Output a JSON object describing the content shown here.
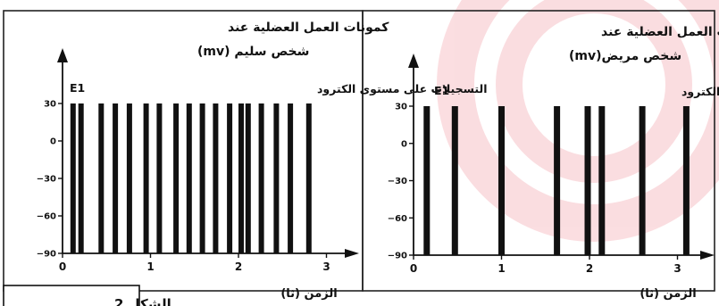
{
  "figure": {
    "caption": "الشكل 2",
    "colors": {
      "ink": "#111111",
      "watermark": "#e0001b"
    }
  },
  "chart_data": [
    {
      "type": "bar",
      "title": "كمونات العمل العضلية عند",
      "subtitle": "شخص سليم (mv)",
      "recording_label": "التسجيلات على مستوى الكترود",
      "electrode_label": "E1",
      "xlabel": "الزمن (ثا)",
      "ylabel": "mv",
      "xlim": [
        0,
        3.1
      ],
      "ylim": [
        -90,
        30
      ],
      "x_ticks": [
        0,
        1,
        2,
        3
      ],
      "y_ticks": [
        30,
        0,
        -30,
        -60,
        -90
      ],
      "y_tick_labels": [
        "30",
        "0",
        "−30",
        "−60",
        "−90"
      ],
      "baseline": -90,
      "spike_peak": 30,
      "spike_times": [
        0.12,
        0.21,
        0.44,
        0.6,
        0.76,
        0.95,
        1.1,
        1.29,
        1.44,
        1.59,
        1.74,
        1.9,
        2.03,
        2.11,
        2.26,
        2.43,
        2.59,
        2.8
      ]
    },
    {
      "type": "bar",
      "title": "كمونات العمل العضلية عند",
      "subtitle": "شخص مريض(mv)",
      "recording_label": "التسجيلات على مستوى الكترود",
      "electrode_label": "E1",
      "xlabel": "الزمن (ثا)",
      "ylabel": "mv",
      "xlim": [
        0,
        3.2
      ],
      "ylim": [
        -90,
        30
      ],
      "x_ticks": [
        0,
        1,
        2,
        3
      ],
      "y_ticks": [
        30,
        0,
        -30,
        -60,
        -90
      ],
      "y_tick_labels": [
        "30",
        "0",
        "−30",
        "−60",
        "−90"
      ],
      "baseline": -90,
      "spike_peak": 30,
      "spike_times": [
        0.15,
        0.47,
        1.0,
        1.63,
        1.98,
        2.14,
        2.6,
        3.1
      ]
    }
  ]
}
